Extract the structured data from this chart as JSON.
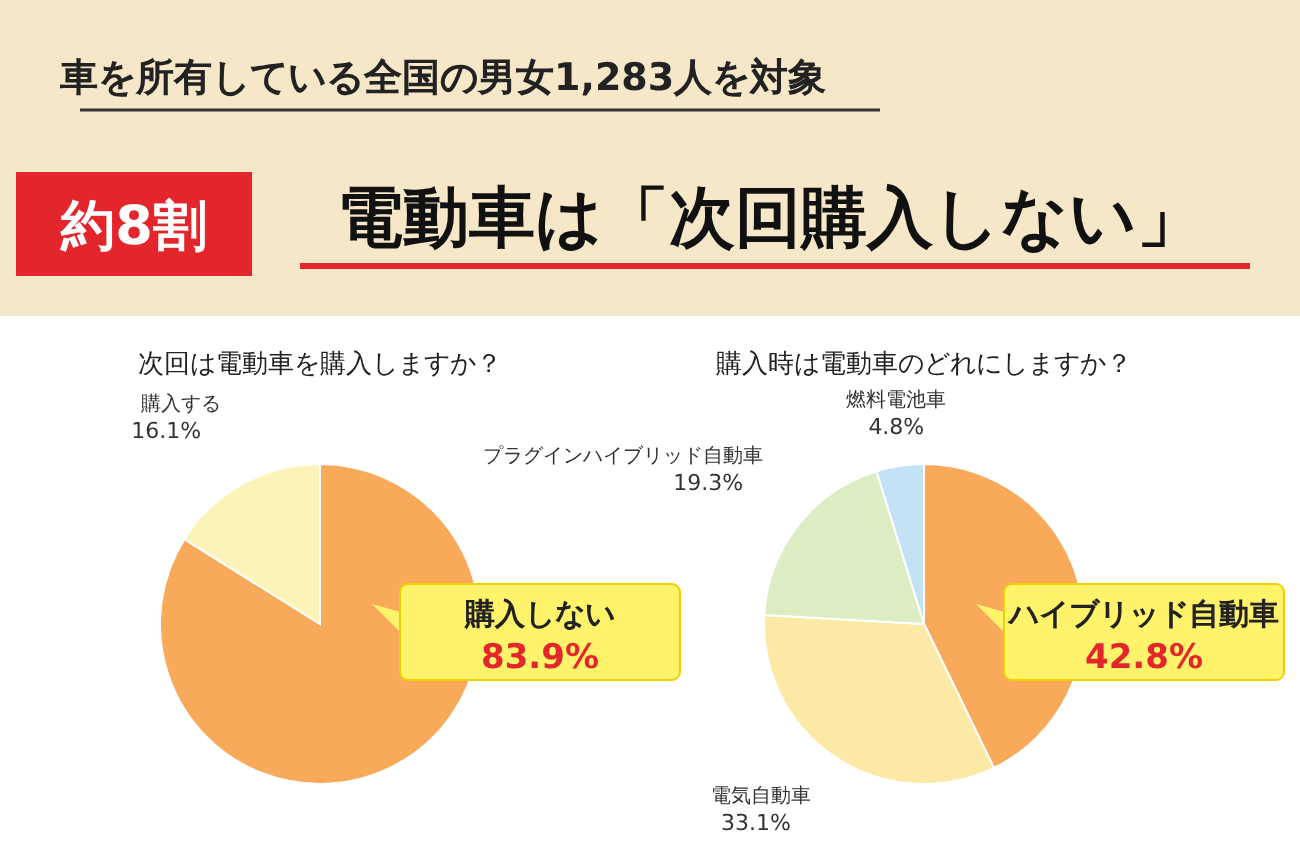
{
  "chart_data": [
    {
      "type": "other",
      "title": "電動車は「次回購入しない」",
      "subtitle": "車を所有している全国の男女1,283人を対象",
      "annotations": [
        "約8割"
      ]
    },
    {
      "type": "pie",
      "title": "次回は電動車を購入しますか？",
      "categories": [
        "購入しない",
        "購入する"
      ],
      "values": [
        83.9,
        16.1
      ],
      "colors": [
        "#f9a95a",
        "#fdf3b8"
      ],
      "value_labels": [
        "83.9%",
        "16.1%"
      ],
      "legend": false
    },
    {
      "type": "pie",
      "title": "購入時は電動車のどれにしますか？",
      "categories": [
        "ハイブリッド自動車",
        "電気自動車",
        "プラグインハイブリッド自動車",
        "燃料電池車"
      ],
      "values": [
        42.8,
        33.1,
        19.3,
        4.8
      ],
      "colors": [
        "#f9a95a",
        "#fde9a6",
        "#dcedc4",
        "#c4e2f5"
      ],
      "value_labels": [
        "42.8%",
        "33.1%",
        "19.3%",
        "4.8%"
      ],
      "legend": false
    }
  ]
}
